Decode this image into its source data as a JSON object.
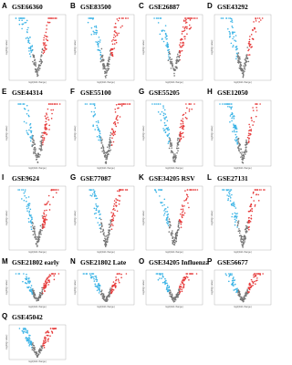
{
  "x_label": "log2(fold change)",
  "y_label": "-log10(p value)",
  "panels": [
    {
      "letter": "A",
      "title": "GSE66360"
    },
    {
      "letter": "B",
      "title": "GSE83500"
    },
    {
      "letter": "C",
      "title": "GSE26887"
    },
    {
      "letter": "D",
      "title": "GSE43292"
    },
    {
      "letter": "E",
      "title": "GSE44314"
    },
    {
      "letter": "F",
      "title": "GSE55100"
    },
    {
      "letter": "G",
      "title": "GSE55205"
    },
    {
      "letter": "H",
      "title": "GSE12050"
    },
    {
      "letter": "I",
      "title": "GSE9624"
    },
    {
      "letter": "G",
      "title": "GSE77087"
    },
    {
      "letter": "K",
      "title": "GSE34205 RSV"
    },
    {
      "letter": "L",
      "title": "GSE27131"
    },
    {
      "letter": "M",
      "title": "GSE21802 early"
    },
    {
      "letter": "N",
      "title": "GSE21802 Late"
    },
    {
      "letter": "O",
      "title": "GSE34205 Influenza"
    },
    {
      "letter": "P",
      "title": "GSE56677"
    },
    {
      "letter": "Q",
      "title": "GSE45042"
    }
  ]
}
